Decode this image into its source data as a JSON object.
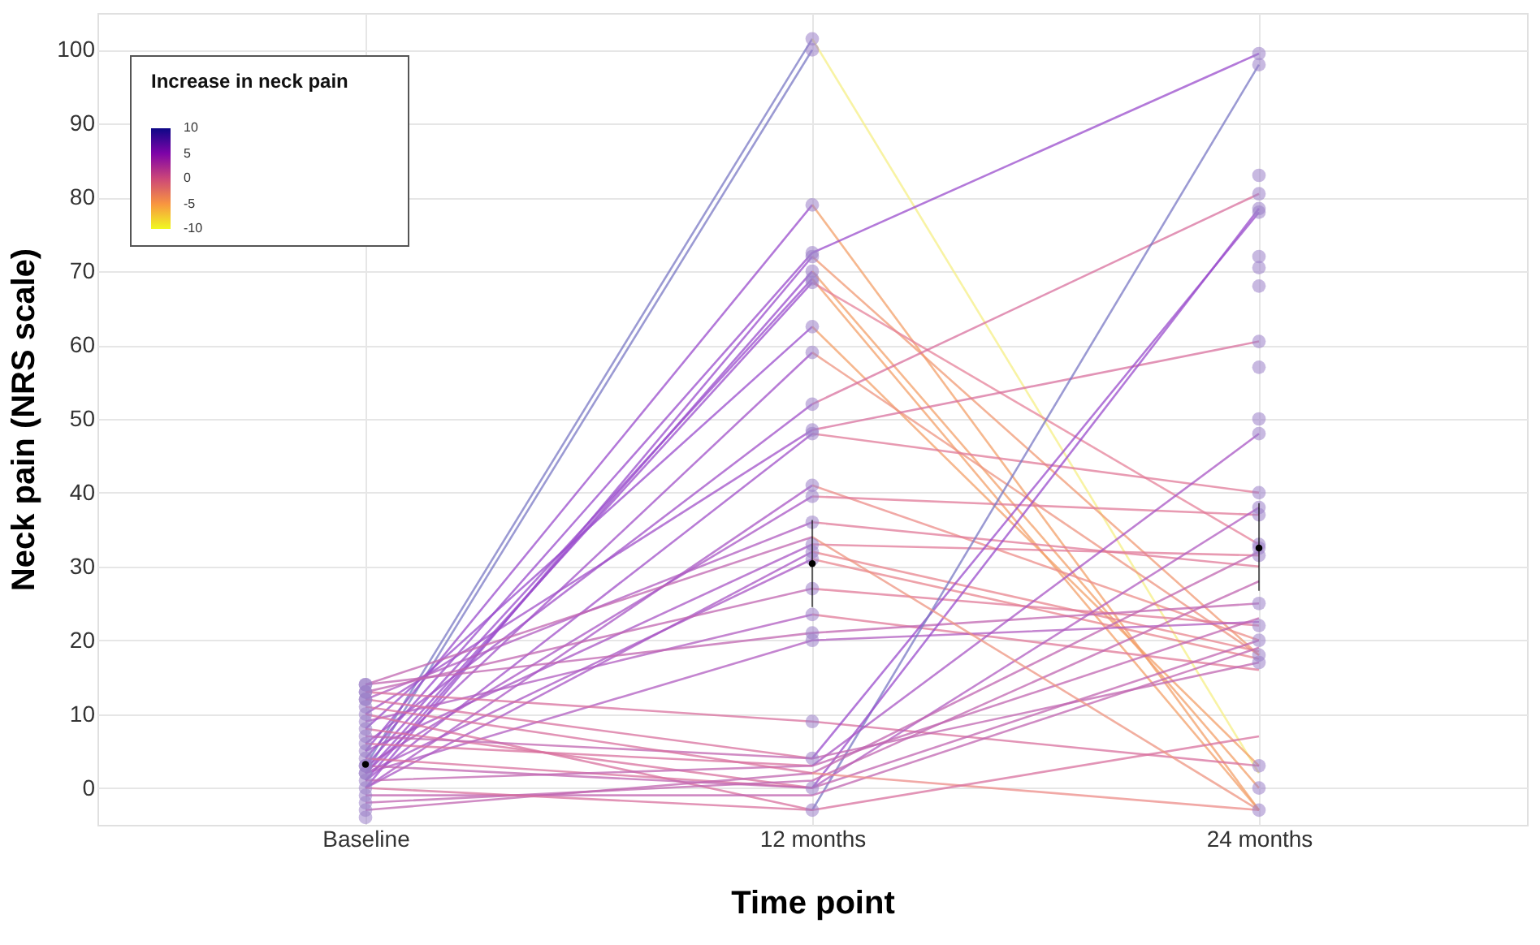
{
  "chart_data": {
    "type": "line",
    "xlabel": "Time point",
    "ylabel": "Neck pain (NRS scale)",
    "clabel": "Increase in neck pain",
    "annotations": [
      "10",
      "5",
      "0",
      "-5",
      "-10"
    ],
    "grid": true,
    "line_style": "solid",
    "categories": [
      "Baseline",
      "12 months",
      "24 months"
    ],
    "ylim": [
      -5,
      105
    ],
    "yticks": [
      0,
      10,
      20,
      30,
      40,
      50,
      60,
      70,
      80,
      90,
      100
    ],
    "series": [
      {
        "color": "#7a78c4",
        "values": [
          2,
          100,
          null
        ]
      },
      {
        "color": "#7a78c4",
        "values": [
          3,
          101.5,
          null
        ]
      },
      {
        "color": "#f6ef86",
        "values": [
          null,
          101.5,
          2
        ]
      },
      {
        "color": "#9a4ccc",
        "values": [
          5,
          79,
          null
        ]
      },
      {
        "color": "#f3a06a",
        "values": [
          null,
          79,
          -3
        ]
      },
      {
        "color": "#9a4ccc",
        "values": [
          0,
          72,
          null
        ]
      },
      {
        "color": "#f09a74",
        "values": [
          null,
          72,
          18
        ]
      },
      {
        "color": "#9a4ccc",
        "values": [
          1,
          70,
          null
        ]
      },
      {
        "color": "#f3a06a",
        "values": [
          null,
          70,
          0
        ]
      },
      {
        "color": "#9a4ccc",
        "values": [
          3,
          69,
          null
        ]
      },
      {
        "color": "#f3a06a",
        "values": [
          null,
          69,
          -3
        ]
      },
      {
        "color": "#9a4ccc",
        "values": [
          2,
          68.5,
          null
        ]
      },
      {
        "color": "#e5829a",
        "values": [
          null,
          68.5,
          33
        ]
      },
      {
        "color": "#9a4ccc",
        "values": [
          4,
          72.5,
          99.5
        ]
      },
      {
        "color": "#9a4ccc",
        "values": [
          8,
          62.5,
          null
        ]
      },
      {
        "color": "#f3a06a",
        "values": [
          null,
          62.5,
          3
        ]
      },
      {
        "color": "#a050c8",
        "values": [
          2,
          59,
          null
        ]
      },
      {
        "color": "#ee9480",
        "values": [
          null,
          59,
          18
        ]
      },
      {
        "color": "#a050c8",
        "values": [
          6,
          52,
          null
        ]
      },
      {
        "color": "#d8709e",
        "values": [
          null,
          52,
          80.5
        ]
      },
      {
        "color": "#a050c8",
        "values": [
          1,
          48,
          null
        ]
      },
      {
        "color": "#e07a98",
        "values": [
          null,
          48,
          40
        ]
      },
      {
        "color": "#a050c8",
        "values": [
          10,
          48.5,
          null
        ]
      },
      {
        "color": "#d8709e",
        "values": [
          null,
          48.5,
          60.5
        ]
      },
      {
        "color": "#a856c4",
        "values": [
          0,
          41,
          null
        ]
      },
      {
        "color": "#ec8c88",
        "values": [
          null,
          41,
          20
        ]
      },
      {
        "color": "#a856c4",
        "values": [
          3,
          39.5,
          null
        ]
      },
      {
        "color": "#e07a98",
        "values": [
          null,
          39.5,
          37
        ]
      },
      {
        "color": "#b05cc0",
        "values": [
          12,
          36,
          null
        ]
      },
      {
        "color": "#e07a98",
        "values": [
          null,
          36,
          30
        ]
      },
      {
        "color": "#a856c4",
        "values": [
          5,
          33,
          null
        ]
      },
      {
        "color": "#e07a98",
        "values": [
          null,
          33,
          31.5
        ]
      },
      {
        "color": "#a856c4",
        "values": [
          0,
          32,
          null
        ]
      },
      {
        "color": "#e8848e",
        "values": [
          null,
          32,
          18.5
        ]
      },
      {
        "color": "#a856c4",
        "values": [
          2,
          31,
          null
        ]
      },
      {
        "color": "#e8848e",
        "values": [
          null,
          31,
          17.5
        ]
      },
      {
        "color": "#c066b0",
        "values": [
          13,
          27,
          null
        ]
      },
      {
        "color": "#e07a98",
        "values": [
          null,
          27,
          22
        ]
      },
      {
        "color": "#b05cc0",
        "values": [
          9,
          23.5,
          null
        ]
      },
      {
        "color": "#e07a98",
        "values": [
          null,
          23.5,
          16
        ]
      },
      {
        "color": "#c066b0",
        "values": [
          14,
          21,
          25
        ]
      },
      {
        "color": "#b05cc0",
        "values": [
          2,
          20,
          22.5
        ]
      },
      {
        "color": "#d8709e",
        "values": [
          13,
          9,
          3
        ]
      },
      {
        "color": "#d8709e",
        "values": [
          12,
          4,
          null
        ]
      },
      {
        "color": "#9a4ccc",
        "values": [
          null,
          4,
          78
        ]
      },
      {
        "color": "#d8709e",
        "values": [
          10,
          -3,
          null
        ]
      },
      {
        "color": "#7a78c4",
        "values": [
          null,
          -3,
          98
        ]
      },
      {
        "color": "#d8709e",
        "values": [
          8,
          0,
          null
        ]
      },
      {
        "color": "#9a4ccc",
        "values": [
          null,
          0,
          78.5
        ]
      },
      {
        "color": "#d8709e",
        "values": [
          6,
          3,
          null
        ]
      },
      {
        "color": "#a856c4",
        "values": [
          null,
          3,
          48
        ]
      },
      {
        "color": "#d8709e",
        "values": [
          4,
          0,
          null
        ]
      },
      {
        "color": "#b05cc0",
        "values": [
          null,
          0,
          38
        ]
      },
      {
        "color": "#c066b0",
        "values": [
          -3,
          2,
          32
        ]
      },
      {
        "color": "#c066b0",
        "values": [
          -2,
          1,
          28
        ]
      },
      {
        "color": "#c066b0",
        "values": [
          1,
          3,
          23
        ]
      },
      {
        "color": "#c066b0",
        "values": [
          3,
          0,
          20
        ]
      },
      {
        "color": "#c066b0",
        "values": [
          -1,
          -1,
          19
        ]
      },
      {
        "color": "#c066b0",
        "values": [
          7,
          4,
          17
        ]
      },
      {
        "color": "#d8709e",
        "values": [
          11,
          2,
          null
        ]
      },
      {
        "color": "#ec8c88",
        "values": [
          null,
          2,
          -3
        ]
      },
      {
        "color": "#d8709e",
        "values": [
          0,
          -3,
          7
        ]
      },
      {
        "color": "#c066b0",
        "values": [
          14,
          34,
          null
        ]
      },
      {
        "color": "#ee9480",
        "values": [
          null,
          34,
          -3
        ]
      },
      {
        "type": "scatter",
        "color": "#9b80c8",
        "x": [
          "Baseline",
          "Baseline",
          "Baseline",
          "Baseline",
          "Baseline",
          "Baseline",
          "Baseline",
          "Baseline",
          "Baseline",
          "Baseline",
          "Baseline",
          "Baseline",
          "Baseline",
          "Baseline",
          "Baseline",
          "Baseline",
          "Baseline",
          "Baseline",
          "Baseline",
          "Baseline",
          "Baseline",
          "Baseline",
          "Baseline",
          "Baseline",
          "12 months",
          "12 months",
          "12 months",
          "12 months",
          "12 months",
          "12 months",
          "12 months",
          "12 months",
          "12 months",
          "12 months",
          "12 months",
          "12 months",
          "12 months",
          "12 months",
          "12 months",
          "12 months",
          "12 months",
          "12 months",
          "12 months",
          "12 months",
          "12 months",
          "12 months",
          "12 months",
          "12 months",
          "12 months",
          "12 months",
          "12 months",
          "24 months",
          "24 months",
          "24 months",
          "24 months",
          "24 months",
          "24 months",
          "24 months",
          "24 months",
          "24 months",
          "24 months",
          "24 months",
          "24 months",
          "24 months",
          "24 months",
          "24 months",
          "24 months",
          "24 months",
          "24 months",
          "24 months",
          "24 months",
          "24 months",
          "24 months",
          "24 months",
          "24 months",
          "24 months",
          "24 months",
          "24 months"
        ],
        "values": [
          2,
          3,
          5,
          0,
          1,
          4,
          8,
          6,
          10,
          12,
          13,
          14,
          9,
          11,
          7,
          -3,
          -2,
          -1,
          -4,
          14,
          13,
          12,
          2,
          3,
          100,
          101.5,
          79,
          72,
          70,
          69,
          68.5,
          72.5,
          62.5,
          59,
          52,
          48,
          48.5,
          41,
          39.5,
          36,
          33,
          32,
          31,
          27,
          23.5,
          21,
          20,
          9,
          4,
          -3,
          0,
          99.5,
          98,
          83,
          80.5,
          78,
          78.5,
          72,
          70.5,
          68,
          60.5,
          57,
          50,
          48,
          40,
          38,
          37,
          33,
          32.5,
          31.5,
          25,
          22,
          20,
          18,
          17,
          3,
          -3,
          0
        ]
      },
      {
        "type": "scatter",
        "color": "#000000",
        "values": [
          3.2,
          30.4,
          32.5
        ],
        "errors": [
          null,
          [
            24.5,
            36.3
          ],
          [
            26.7,
            38.6
          ]
        ]
      }
    ]
  }
}
